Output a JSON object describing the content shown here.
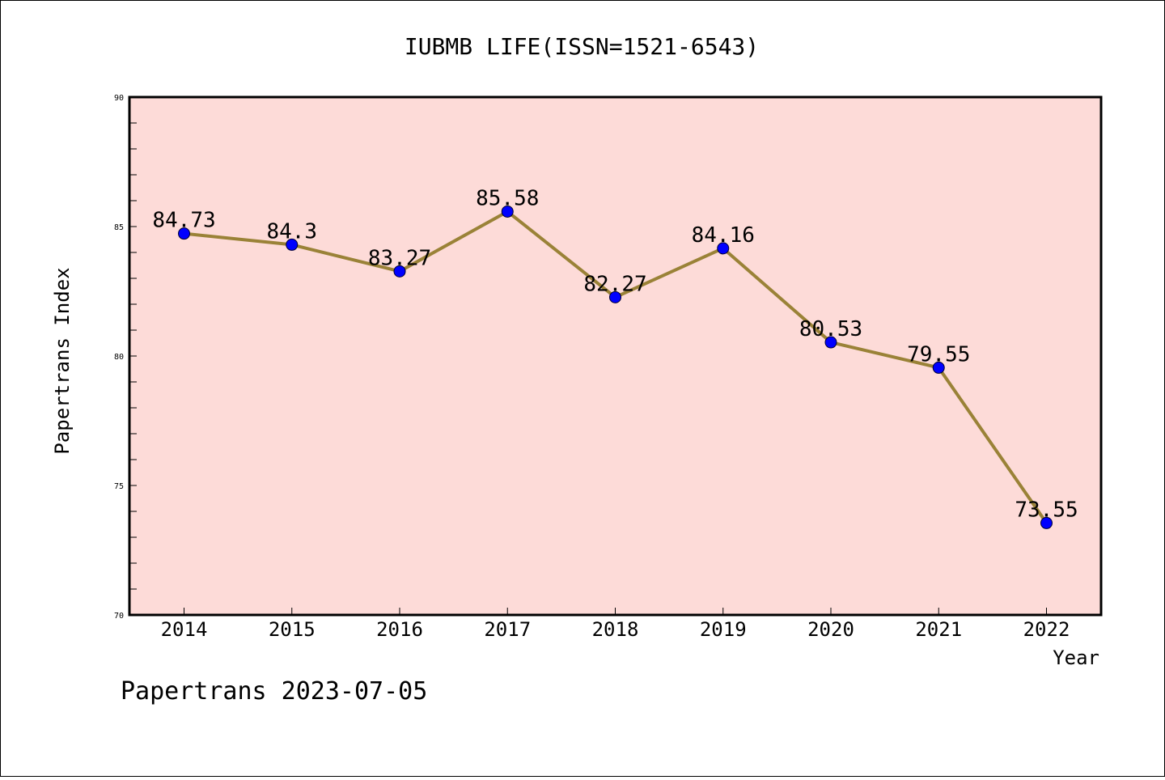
{
  "chart_data": {
    "type": "line",
    "title": "IUBMB LIFE(ISSN=1521-6543)",
    "xlabel": "Year",
    "ylabel": "Papertrans Index",
    "categories": [
      "2014",
      "2015",
      "2016",
      "2017",
      "2018",
      "2019",
      "2020",
      "2021",
      "2022"
    ],
    "series": [
      {
        "values": [
          84.73,
          84.3,
          83.27,
          85.58,
          82.27,
          84.16,
          80.53,
          79.55,
          73.55
        ],
        "labels": [
          "84.73",
          "84.3",
          "83.27",
          "85.58",
          "82.27",
          "84.16",
          "80.53",
          "79.55",
          "73.55"
        ]
      }
    ],
    "ylim": [
      70,
      90
    ],
    "yticks": [
      "70",
      "75",
      "80",
      "85",
      "90"
    ],
    "grid": false,
    "legend": "none",
    "colors": {
      "plot_background": "#fddbd8",
      "line": "#9a8237",
      "marker": "#0000ff"
    }
  },
  "footer": {
    "text": "Papertrans 2023-07-05"
  }
}
